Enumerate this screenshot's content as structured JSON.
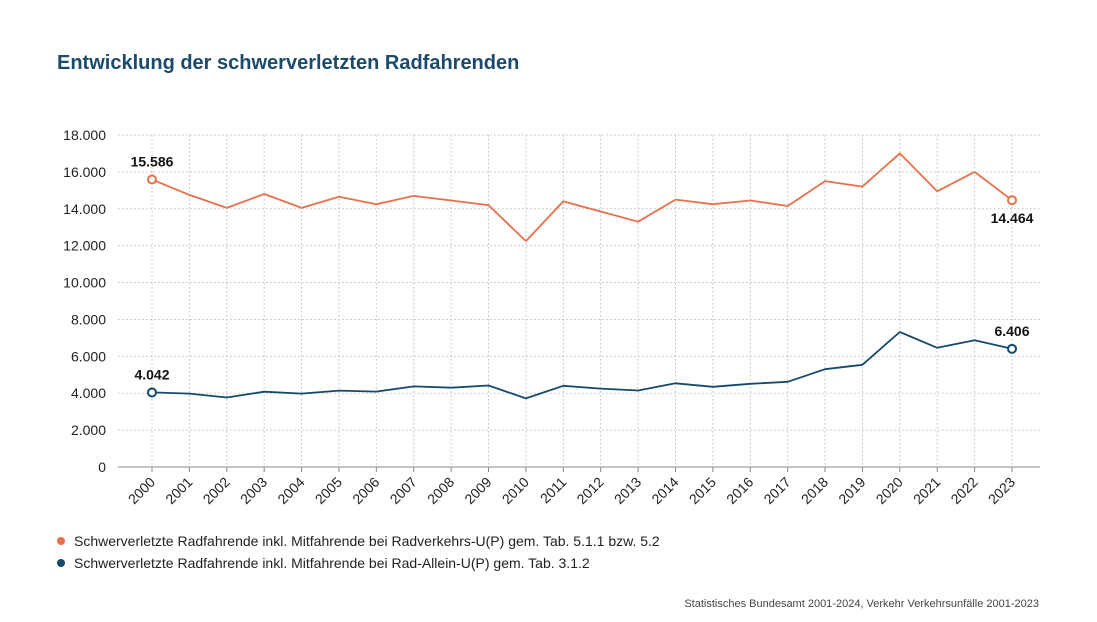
{
  "chart_data": {
    "type": "line",
    "title": "Entwicklung der schwerverletzten Radfahrenden",
    "categories": [
      "2000",
      "2001",
      "2002",
      "2003",
      "2004",
      "2005",
      "2006",
      "2007",
      "2008",
      "2009",
      "2010",
      "2011",
      "2012",
      "2013",
      "2014",
      "2015",
      "2016",
      "2017",
      "2018",
      "2019",
      "2020",
      "2021",
      "2022",
      "2023"
    ],
    "ylim": [
      0,
      18000
    ],
    "yticks": [
      0,
      2000,
      4000,
      6000,
      8000,
      10000,
      12000,
      14000,
      16000,
      18000
    ],
    "ytick_labels": [
      "0",
      "2.000",
      "4.000",
      "6.000",
      "8.000",
      "10.000",
      "12.000",
      "14.000",
      "16.000",
      "18.000"
    ],
    "grid": true,
    "legend_position": "bottom-left",
    "series": [
      {
        "name": "Schwerverletzte Radfahrende inkl. Mitfahrende bei Radverkehrs-U(P) gem. Tab. 5.1.1 bzw. 5.2",
        "color": "#e8704a",
        "values": [
          15586,
          14750,
          14050,
          14800,
          14050,
          14650,
          14250,
          14700,
          14450,
          14200,
          12250,
          14400,
          13850,
          13300,
          14500,
          14250,
          14450,
          14150,
          15500,
          15200,
          17000,
          14950,
          16000,
          14464
        ],
        "annotations": [
          {
            "index": 0,
            "label": "15.586"
          },
          {
            "index": 23,
            "label": "14.464"
          }
        ]
      },
      {
        "name": "Schwerverletzte Radfahrende inkl. Mitfahrende bei Rad-Allein-U(P) gem. Tab. 3.1.2",
        "color": "#154a6b",
        "values": [
          4042,
          3980,
          3770,
          4080,
          3980,
          4140,
          4090,
          4370,
          4300,
          4420,
          3720,
          4400,
          4250,
          4150,
          4540,
          4350,
          4510,
          4620,
          5300,
          5540,
          7320,
          6460,
          6870,
          6406
        ],
        "annotations": [
          {
            "index": 0,
            "label": "4.042"
          },
          {
            "index": 23,
            "label": "6.406"
          }
        ]
      }
    ]
  },
  "source": "Statistisches Bundesamt 2001-2024, Verkehr Verkehrsunfälle 2001-2023"
}
